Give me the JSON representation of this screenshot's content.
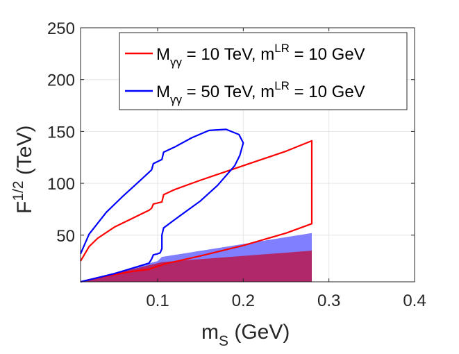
{
  "chart_data": {
    "type": "line",
    "title": "",
    "xlabel": {
      "base": "m",
      "sub": "S",
      "unit": " (GeV)"
    },
    "ylabel": {
      "base": "F",
      "sup": "1/2",
      "unit": " (TeV)"
    },
    "xlim": [
      0.01,
      0.4
    ],
    "ylim": [
      5,
      250
    ],
    "xticks": [
      0.1,
      0.2,
      0.3,
      0.4
    ],
    "xtick_labels": [
      "0.1",
      "0.2",
      "0.3",
      "0.4"
    ],
    "yticks": [
      50,
      100,
      150,
      200,
      250
    ],
    "ytick_labels": [
      "50",
      "100",
      "150",
      "200",
      "250"
    ],
    "grid": true,
    "legend_position": "top-right",
    "series": [
      {
        "name": "M_γγ = 10 TeV, m^LR = 10 GeV",
        "legend": {
          "m": "M",
          "msub": "γγ",
          "mid": " = 10 TeV, m",
          "sup": "LR",
          "tail": " = 10 GeV"
        },
        "color": "#ff0000",
        "x": [
          0.01,
          0.02,
          0.03,
          0.05,
          0.07,
          0.09,
          0.093,
          0.095,
          0.1,
          0.105,
          0.107,
          0.12,
          0.15,
          0.2,
          0.25,
          0.28,
          0.28,
          0.25,
          0.2,
          0.15,
          0.107,
          0.105,
          0.1,
          0.093,
          0.09,
          0.07,
          0.05,
          0.03,
          0.02,
          0.01
        ],
        "y": [
          25,
          39,
          47,
          58,
          66,
          74,
          76,
          80,
          81,
          82,
          89,
          94,
          103,
          117,
          131,
          141,
          61,
          52,
          40,
          30,
          22,
          21,
          20,
          18,
          17,
          15,
          12,
          9,
          7,
          5
        ]
      },
      {
        "name": "M_γγ = 50 TeV, m^LR = 10 GeV",
        "legend": {
          "m": "M",
          "msub": "γγ",
          "mid": " = 50 TeV, m",
          "sup": "LR",
          "tail": " = 10 GeV"
        },
        "color": "#0000ff",
        "x": [
          0.01,
          0.02,
          0.04,
          0.06,
          0.08,
          0.093,
          0.095,
          0.1,
          0.105,
          0.107,
          0.12,
          0.14,
          0.16,
          0.18,
          0.195,
          0.2,
          0.196,
          0.19,
          0.17,
          0.15,
          0.12,
          0.107,
          0.105,
          0.105,
          0.103,
          0.1,
          0.095,
          0.093,
          0.09,
          0.07,
          0.05,
          0.03,
          0.02,
          0.01
        ],
        "y": [
          32,
          51,
          72,
          88,
          103,
          113,
          119,
          121,
          123,
          130,
          135,
          144,
          151,
          152,
          147,
          139,
          127,
          117,
          98,
          83,
          65,
          57,
          50,
          37,
          33,
          32,
          31,
          27,
          23,
          18,
          13,
          9,
          7,
          5
        ]
      }
    ],
    "shaded_regions": [
      {
        "name": "blue band",
        "color": "#7f7fff",
        "x": [
          0.01,
          0.1,
          0.105,
          0.28,
          0.28,
          0.01
        ],
        "y": [
          5,
          25,
          29,
          52,
          5,
          5
        ]
      },
      {
        "name": "overlap band",
        "color": "#b0286a",
        "x": [
          0.01,
          0.1,
          0.105,
          0.28,
          0.28,
          0.01
        ],
        "y": [
          5,
          23,
          24,
          35,
          5,
          5
        ]
      }
    ]
  }
}
